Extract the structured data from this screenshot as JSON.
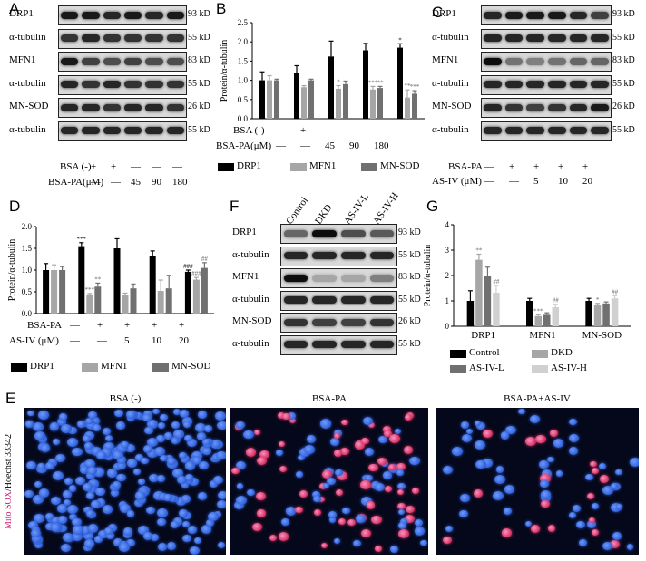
{
  "panels": {
    "A": {
      "letter": "A",
      "rows": [
        {
          "label": "DRP1",
          "kd": "93 kD",
          "intens": [
            0.9,
            0.9,
            0.85,
            0.9,
            0.85,
            0.9
          ]
        },
        {
          "label": "α-tubulin",
          "kd": "55 kD",
          "intens": [
            0.8,
            0.85,
            0.8,
            0.8,
            0.8,
            0.8
          ]
        },
        {
          "label": "MFN1",
          "kd": "83 kD",
          "intens": [
            0.9,
            0.75,
            0.7,
            0.75,
            0.7,
            0.7
          ]
        },
        {
          "label": "α-tubulin",
          "kd": "55 kD",
          "intens": [
            0.85,
            0.8,
            0.85,
            0.8,
            0.8,
            0.8
          ]
        },
        {
          "label": "MN-SOD",
          "kd": "26 kD",
          "intens": [
            0.85,
            0.85,
            0.8,
            0.85,
            0.85,
            0.8
          ]
        },
        {
          "label": "α-tubulin",
          "kd": "55 kD",
          "intens": [
            0.85,
            0.85,
            0.85,
            0.85,
            0.85,
            0.85
          ]
        }
      ],
      "bsa_label": "BSA (-)",
      "bsapa_label": "BSA-PA(μM)",
      "bsa_vals": [
        "+",
        "+",
        "—",
        "—",
        "—"
      ],
      "bsapa_vals": [
        "—",
        "—",
        "45",
        "90",
        "180"
      ]
    },
    "B": {
      "letter": "B",
      "ylabel": "Protein/α-tubulin",
      "bsa_label": "BSA (-)",
      "bsapa_label": "BSA-PA(μM)",
      "bsa_vals": [
        "—",
        "+",
        "—",
        "—",
        "—"
      ],
      "bsapa_vals": [
        "—",
        "—",
        "45",
        "90",
        "180"
      ]
    },
    "C": {
      "letter": "C",
      "rows": [
        {
          "label": "DRP1",
          "kd": "93 kD",
          "intens": [
            0.85,
            0.9,
            0.9,
            0.9,
            0.85,
            0.75
          ]
        },
        {
          "label": "α-tubulin",
          "kd": "55 kD",
          "intens": [
            0.85,
            0.85,
            0.85,
            0.85,
            0.85,
            0.85
          ]
        },
        {
          "label": "MFN1",
          "kd": "83 kD",
          "intens": [
            0.95,
            0.55,
            0.5,
            0.55,
            0.6,
            0.6
          ]
        },
        {
          "label": "α-tubulin",
          "kd": "55 kD",
          "intens": [
            0.85,
            0.85,
            0.85,
            0.85,
            0.85,
            0.85
          ]
        },
        {
          "label": "MN-SOD",
          "kd": "26 kD",
          "intens": [
            0.85,
            0.8,
            0.75,
            0.8,
            0.85,
            0.9
          ]
        },
        {
          "label": "α-tubulin",
          "kd": "55 kD",
          "intens": [
            0.85,
            0.85,
            0.85,
            0.85,
            0.85,
            0.85
          ]
        }
      ],
      "bsapa_label": "BSA-PA",
      "asiv_label": "AS-IV (μM)",
      "bsapa_vals": [
        "—",
        "+",
        "+",
        "+",
        "+"
      ],
      "asiv_vals": [
        "—",
        "—",
        "5",
        "10",
        "20"
      ]
    },
    "D": {
      "letter": "D",
      "ylabel": "Protein/α-tubulin",
      "bsapa_label": "BSA-PA",
      "asiv_label": "AS-IV (μM)",
      "bsapa_vals": [
        "—",
        "+",
        "+",
        "+",
        "+"
      ],
      "asiv_vals": [
        "—",
        "—",
        "5",
        "10",
        "20"
      ]
    },
    "F": {
      "letter": "F",
      "groups": [
        "Control",
        "DKD",
        "AS-IV-L",
        "AS-IV-H"
      ],
      "rows": [
        {
          "label": "DRP1",
          "kd": "93 kD",
          "intens": [
            0.6,
            0.95,
            0.7,
            0.65
          ]
        },
        {
          "label": "α-tubulin",
          "kd": "55 kD",
          "intens": [
            0.85,
            0.85,
            0.85,
            0.85
          ]
        },
        {
          "label": "MFN1",
          "kd": "83 kD",
          "intens": [
            0.95,
            0.35,
            0.35,
            0.5
          ]
        },
        {
          "label": "α-tubulin",
          "kd": "55 kD",
          "intens": [
            0.85,
            0.85,
            0.85,
            0.85
          ]
        },
        {
          "label": "MN-SOD",
          "kd": "26 kD",
          "intens": [
            0.8,
            0.75,
            0.75,
            0.8
          ]
        },
        {
          "label": "α-tubulin",
          "kd": "55 kD",
          "intens": [
            0.85,
            0.85,
            0.85,
            0.85
          ]
        }
      ]
    },
    "G": {
      "letter": "G",
      "ylabel": "Protein/α-tubulin"
    },
    "E": {
      "letter": "E",
      "titles": [
        "BSA (-)",
        "BSA-PA",
        "BSA-PA+AS-IV"
      ],
      "side_label_red": "Mito SOX",
      "side_label_blue": "/Hoechst 33342"
    }
  },
  "colors": {
    "black": "#000000",
    "light_gray": "#a6a6a6",
    "mid_gray": "#707070",
    "pale_gray": "#d0d0d0",
    "nucleus_blue": "#2f5fd8",
    "mitosox_red": "#d03060"
  },
  "chart_data": [
    {
      "type": "bar",
      "panel": "B",
      "ylabel": "Protein/α-tubulin",
      "ylim": [
        0,
        2.5
      ],
      "yticks": [
        "0.0",
        "0.5",
        "1.0",
        "1.5",
        "2.0",
        "2.5"
      ],
      "categories": [
        "1",
        "2",
        "3",
        "4",
        "5"
      ],
      "series": [
        {
          "name": "DRP1",
          "color": "#000000",
          "values": [
            1.0,
            1.2,
            1.62,
            1.78,
            1.85
          ],
          "err": [
            0.22,
            0.18,
            0.4,
            0.18,
            0.1
          ],
          "sig": [
            "",
            "",
            "",
            "",
            "*"
          ]
        },
        {
          "name": "MFN1",
          "color": "#a6a6a6",
          "values": [
            1.0,
            0.82,
            0.78,
            0.76,
            0.55
          ],
          "err": [
            0.12,
            0.04,
            0.08,
            0.08,
            0.2
          ],
          "sig": [
            "",
            "",
            "*",
            "***",
            "**"
          ]
        },
        {
          "name": "MN-SOD",
          "color": "#707070",
          "values": [
            1.0,
            1.0,
            0.9,
            0.8,
            0.65
          ],
          "err": [
            0.03,
            0.03,
            0.08,
            0.04,
            0.08
          ],
          "sig": [
            "",
            "",
            "",
            "**",
            "***"
          ]
        }
      ],
      "legend": "bottom"
    },
    {
      "type": "bar",
      "panel": "D",
      "ylabel": "Protein/α-tubulin",
      "ylim": [
        0,
        2.0
      ],
      "yticks": [
        "0.0",
        "0.5",
        "1.0",
        "1.5",
        "2.0"
      ],
      "categories": [
        "1",
        "2",
        "3",
        "4",
        "5"
      ],
      "series": [
        {
          "name": "DRP1",
          "color": "#000000",
          "values": [
            1.0,
            1.55,
            1.5,
            1.32,
            0.96
          ],
          "err": [
            0.15,
            0.08,
            0.22,
            0.12,
            0.04
          ],
          "sig": [
            "",
            "***",
            "",
            "",
            "###"
          ]
        },
        {
          "name": "MFN1",
          "color": "#a6a6a6",
          "values": [
            1.0,
            0.43,
            0.42,
            0.52,
            0.78
          ],
          "err": [
            0.12,
            0.03,
            0.05,
            0.25,
            0.05
          ],
          "sig": [
            "",
            "***",
            "",
            "",
            "###"
          ]
        },
        {
          "name": "MN-SOD",
          "color": "#707070",
          "values": [
            1.0,
            0.62,
            0.58,
            0.58,
            1.05
          ],
          "err": [
            0.08,
            0.08,
            0.1,
            0.3,
            0.12
          ],
          "sig": [
            "",
            "**",
            "",
            "",
            "##"
          ]
        }
      ],
      "legend": "bottom"
    },
    {
      "type": "bar",
      "panel": "G",
      "ylabel": "Protein/α-tubulin",
      "ylim": [
        0,
        4
      ],
      "yticks": [
        "0",
        "1",
        "2",
        "3",
        "4"
      ],
      "categories": [
        "DRP1",
        "MFN1",
        "MN-SOD"
      ],
      "series": [
        {
          "name": "Control",
          "color": "#000000",
          "values": [
            1.0,
            1.0,
            1.0
          ],
          "err": [
            0.4,
            0.1,
            0.1
          ],
          "sig": [
            "",
            "",
            ""
          ]
        },
        {
          "name": "DKD",
          "color": "#a6a6a6",
          "values": [
            2.62,
            0.4,
            0.82
          ],
          "err": [
            0.22,
            0.05,
            0.08
          ],
          "sig": [
            "**",
            "***",
            "*"
          ]
        },
        {
          "name": "AS-IV-L",
          "color": "#707070",
          "values": [
            1.98,
            0.45,
            0.9
          ],
          "err": [
            0.35,
            0.08,
            0.06
          ],
          "sig": [
            "",
            "",
            ""
          ]
        },
        {
          "name": "AS-IV-H",
          "color": "#d0d0d0",
          "values": [
            1.32,
            0.75,
            1.1
          ],
          "err": [
            0.28,
            0.12,
            0.1
          ],
          "sig": [
            "##",
            "##",
            "##"
          ]
        }
      ],
      "legend": "bottom"
    }
  ]
}
